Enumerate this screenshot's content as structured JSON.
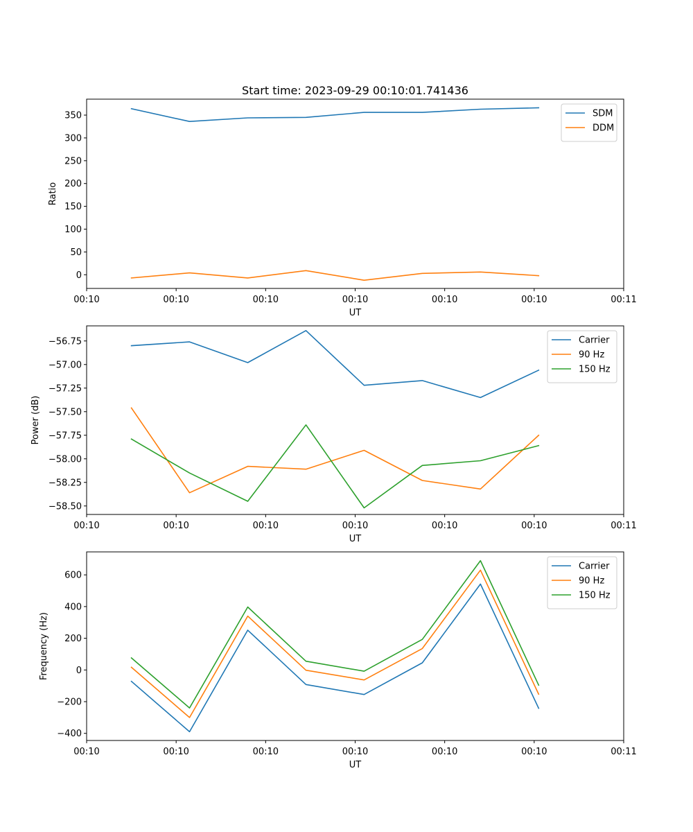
{
  "figure": {
    "title": "Start time: 2023-09-29 00:10:01.741436"
  },
  "chart_data": [
    {
      "type": "line",
      "title": "Start time: 2023-09-29 00:10:01.741436",
      "xlabel": "UT",
      "ylabel": "Ratio",
      "xlim": [
        0,
        6
      ],
      "ylim": [
        -30,
        385
      ],
      "x_ticks": [
        0,
        1,
        2,
        3,
        4,
        5,
        6
      ],
      "x_tick_labels": [
        "00:10",
        "00:10",
        "00:10",
        "00:10",
        "00:10",
        "00:10",
        "00:11"
      ],
      "y_ticks": [
        0,
        50,
        100,
        150,
        200,
        250,
        300,
        350
      ],
      "y_tick_labels": [
        "0",
        "50",
        "100",
        "150",
        "200",
        "250",
        "300",
        "350"
      ],
      "x": [
        0.5,
        1.15,
        1.8,
        2.45,
        3.1,
        3.75,
        4.4,
        5.05
      ],
      "legend_position": "top-right",
      "series": [
        {
          "name": "SDM",
          "color": "#1f77b4",
          "values": [
            364,
            336,
            344,
            345,
            356,
            356,
            363,
            366
          ]
        },
        {
          "name": "DDM",
          "color": "#ff7f0e",
          "values": [
            -7,
            4,
            -7,
            9,
            -12,
            3,
            6,
            -2
          ]
        }
      ]
    },
    {
      "type": "line",
      "title": "",
      "xlabel": "UT",
      "ylabel": "Power (dB)",
      "xlim": [
        0,
        6
      ],
      "ylim": [
        -58.59,
        -56.59
      ],
      "x_ticks": [
        0,
        1,
        2,
        3,
        4,
        5,
        6
      ],
      "x_tick_labels": [
        "00:10",
        "00:10",
        "00:10",
        "00:10",
        "00:10",
        "00:10",
        "00:11"
      ],
      "y_ticks": [
        -58.5,
        -58.25,
        -58.0,
        -57.75,
        -57.5,
        -57.25,
        -57.0,
        -56.75
      ],
      "y_tick_labels": [
        "−58.50",
        "−58.25",
        "−58.00",
        "−57.75",
        "−57.50",
        "−57.25",
        "−57.00",
        "−56.75"
      ],
      "x": [
        0.5,
        1.15,
        1.8,
        2.45,
        3.1,
        3.75,
        4.4,
        5.05
      ],
      "legend_position": "top-right",
      "series": [
        {
          "name": "Carrier",
          "color": "#1f77b4",
          "values": [
            -56.8,
            -56.76,
            -56.98,
            -56.64,
            -57.22,
            -57.17,
            -57.35,
            -57.06
          ]
        },
        {
          "name": "90 Hz",
          "color": "#ff7f0e",
          "values": [
            -57.46,
            -58.36,
            -58.08,
            -58.11,
            -57.91,
            -58.23,
            -58.32,
            -57.75
          ]
        },
        {
          "name": "150 Hz",
          "color": "#2ca02c",
          "values": [
            -57.79,
            -58.15,
            -58.45,
            -57.64,
            -58.52,
            -58.07,
            -58.02,
            -57.86
          ]
        }
      ]
    },
    {
      "type": "line",
      "title": "",
      "xlabel": "UT",
      "ylabel": "Frequency (Hz)",
      "xlim": [
        0,
        6
      ],
      "ylim": [
        -445,
        745
      ],
      "x_ticks": [
        0,
        1,
        2,
        3,
        4,
        5,
        6
      ],
      "x_tick_labels": [
        "00:10",
        "00:10",
        "00:10",
        "00:10",
        "00:10",
        "00:10",
        "00:11"
      ],
      "y_ticks": [
        -400,
        -200,
        0,
        200,
        400,
        600
      ],
      "y_tick_labels": [
        "−400",
        "−200",
        "0",
        "200",
        "400",
        "600"
      ],
      "x": [
        0.5,
        1.15,
        1.8,
        2.45,
        3.1,
        3.75,
        4.4,
        5.05
      ],
      "legend_position": "top-right",
      "series": [
        {
          "name": "Carrier",
          "color": "#1f77b4",
          "values": [
            -72,
            -390,
            251,
            -92,
            -155,
            45,
            542,
            -242
          ]
        },
        {
          "name": "90 Hz",
          "color": "#ff7f0e",
          "values": [
            17,
            -300,
            340,
            -2,
            -63,
            135,
            630,
            -153
          ]
        },
        {
          "name": "150 Hz",
          "color": "#2ca02c",
          "values": [
            76,
            -240,
            397,
            55,
            -8,
            193,
            690,
            -96
          ]
        }
      ]
    }
  ]
}
